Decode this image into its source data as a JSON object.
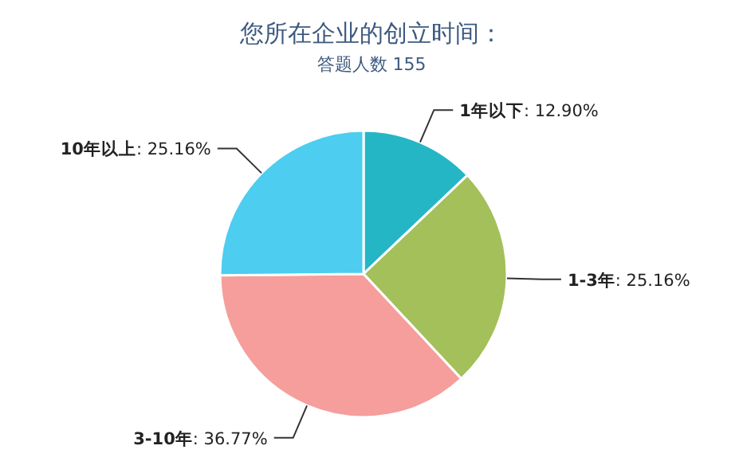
{
  "chart_data": {
    "type": "pie",
    "title": "您所在企业的创立时间：",
    "subtitle": "答题人数 155",
    "categories": [
      "1年以下",
      "1-3年",
      "3-10年",
      "10年以上"
    ],
    "values": [
      12.9,
      25.16,
      36.77,
      25.16
    ],
    "value_labels": [
      ": 12.90%",
      ": 25.16%",
      ": 36.77%",
      ": 25.16%"
    ],
    "colors": [
      "#25b6c6",
      "#a3c05a",
      "#f59e9c",
      "#4dcdef"
    ]
  }
}
